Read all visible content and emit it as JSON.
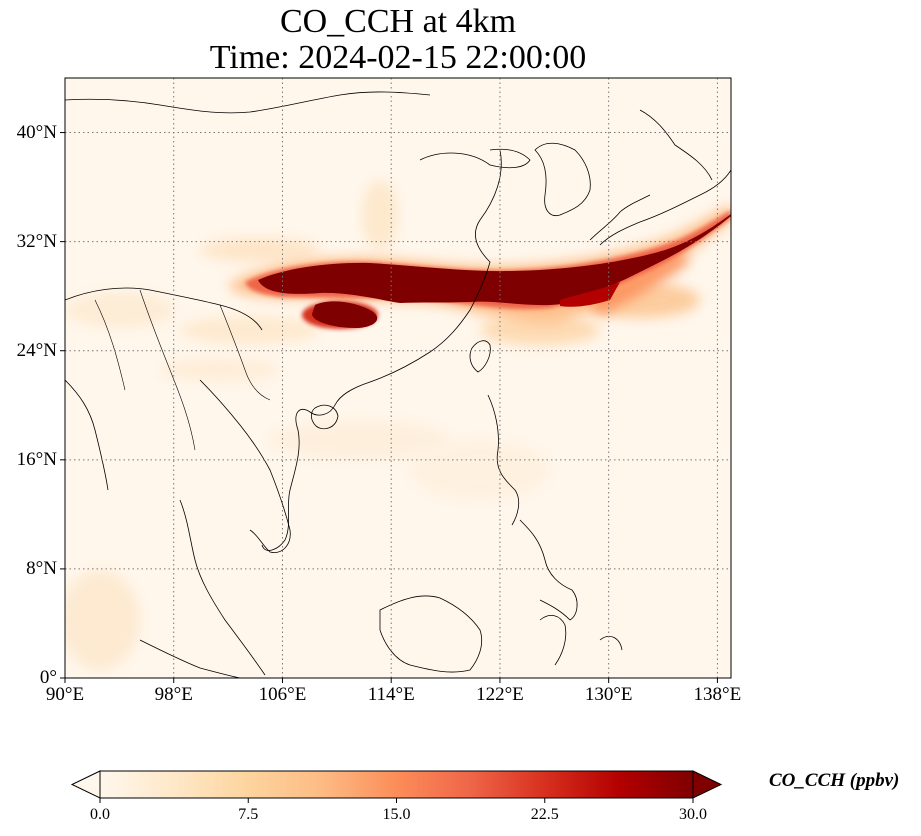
{
  "title": {
    "line1": "CO_CCH at 4km",
    "line2": "Time: 2024-02-15 22:00:00"
  },
  "map": {
    "lon_range": [
      90,
      139
    ],
    "lat_range": [
      0,
      44
    ],
    "x_ticks": [
      "90°E",
      "98°E",
      "106°E",
      "114°E",
      "122°E",
      "130°E",
      "138°E"
    ],
    "x_tick_values": [
      90,
      98,
      106,
      114,
      122,
      130,
      138
    ],
    "y_ticks": [
      "0°",
      "8°N",
      "16°N",
      "24°N",
      "32°N",
      "40°N"
    ],
    "y_tick_values": [
      0,
      8,
      16,
      24,
      32,
      40
    ],
    "gridlines": "dotted",
    "coastlines": true,
    "borders": true,
    "colormap": "OrRd",
    "plume_color": "#7f0000",
    "background_color": "#fff7ec"
  },
  "colorbar": {
    "label": "CO_CCH (ppbv)",
    "min": 0.0,
    "max": 30.0,
    "tick_labels": [
      "0.0",
      "7.5",
      "15.0",
      "22.5",
      "30.0"
    ],
    "extend": "both",
    "colors": [
      "#fff7ec",
      "#fee8c8",
      "#fdd49e",
      "#fdbb84",
      "#fc8d59",
      "#ef6548",
      "#d7301f",
      "#b30000",
      "#7f0000"
    ]
  }
}
